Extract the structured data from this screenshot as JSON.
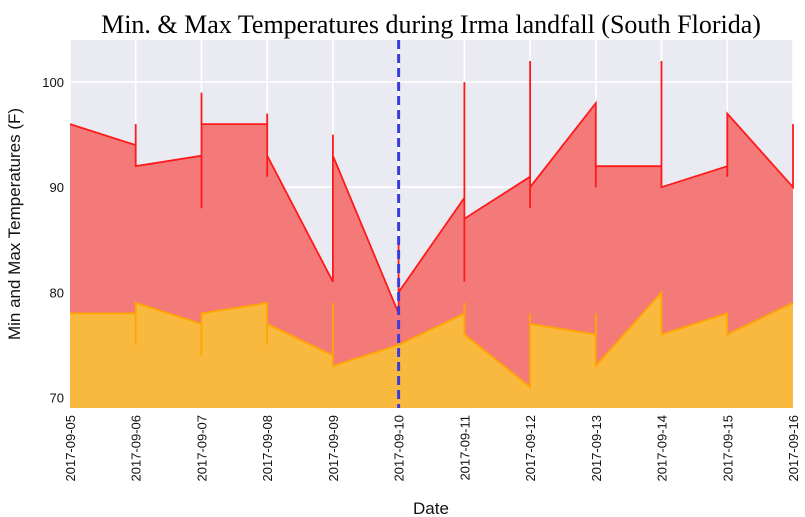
{
  "chart_data": {
    "type": "area",
    "title": "Min. & Max Temperatures during Irma landfall (South Florida)",
    "xlabel": "Date",
    "ylabel": "Min and Max Temperatures (F)",
    "ylim": [
      69,
      104
    ],
    "yticks": [
      "70",
      "80",
      "90",
      "100"
    ],
    "xticks": [
      "2017-09-05",
      "2017-09-06",
      "2017-09-07",
      "2017-09-08",
      "2017-09-09",
      "2017-09-10",
      "2017-09-11",
      "2017-09-12",
      "2017-09-13",
      "2017-09-14",
      "2017-09-15",
      "2017-09-16"
    ],
    "grid": true,
    "landfall_marker": {
      "x": "2017-09-10",
      "color": "#3b3bdc",
      "style": "dashed"
    },
    "series": [
      {
        "color": "#ff1a1a",
        "fill": "#f47a7a",
        "points": [
          [
            "2017-09-05",
            96
          ],
          [
            "2017-09-06",
            94
          ],
          [
            "2017-09-06",
            96
          ],
          [
            "2017-09-06",
            92
          ],
          [
            "2017-09-07",
            93
          ],
          [
            "2017-09-07",
            88
          ],
          [
            "2017-09-07",
            99
          ],
          [
            "2017-09-07",
            96
          ],
          [
            "2017-09-08",
            96
          ],
          [
            "2017-09-08",
            91
          ],
          [
            "2017-09-08",
            97
          ],
          [
            "2017-09-08",
            93
          ],
          [
            "2017-09-09",
            81
          ],
          [
            "2017-09-09",
            95
          ],
          [
            "2017-09-09",
            93
          ],
          [
            "2017-09-10",
            78
          ],
          [
            "2017-09-10",
            85
          ],
          [
            "2017-09-10",
            80
          ],
          [
            "2017-09-11",
            89
          ],
          [
            "2017-09-11",
            81
          ],
          [
            "2017-09-11",
            100
          ],
          [
            "2017-09-11",
            87
          ],
          [
            "2017-09-12",
            91
          ],
          [
            "2017-09-12",
            88
          ],
          [
            "2017-09-12",
            102
          ],
          [
            "2017-09-12",
            90
          ],
          [
            "2017-09-13",
            98
          ],
          [
            "2017-09-13",
            90
          ],
          [
            "2017-09-13",
            92
          ],
          [
            "2017-09-14",
            92
          ],
          [
            "2017-09-14",
            102
          ],
          [
            "2017-09-14",
            90
          ],
          [
            "2017-09-15",
            92
          ],
          [
            "2017-09-15",
            91
          ],
          [
            "2017-09-15",
            97
          ],
          [
            "2017-09-16",
            90
          ],
          [
            "2017-09-16",
            96
          ]
        ]
      },
      {
        "color": "#ffa500",
        "fill": "#f9b93e",
        "points": [
          [
            "2017-09-05",
            78
          ],
          [
            "2017-09-06",
            78
          ],
          [
            "2017-09-06",
            75
          ],
          [
            "2017-09-06",
            79
          ],
          [
            "2017-09-07",
            77
          ],
          [
            "2017-09-07",
            74
          ],
          [
            "2017-09-07",
            78
          ],
          [
            "2017-09-08",
            79
          ],
          [
            "2017-09-08",
            75
          ],
          [
            "2017-09-08",
            77
          ],
          [
            "2017-09-09",
            74
          ],
          [
            "2017-09-09",
            79
          ],
          [
            "2017-09-09",
            73
          ],
          [
            "2017-09-10",
            75
          ],
          [
            "2017-09-10",
            76
          ],
          [
            "2017-09-10",
            75
          ],
          [
            "2017-09-11",
            78
          ],
          [
            "2017-09-11",
            79
          ],
          [
            "2017-09-11",
            76
          ],
          [
            "2017-09-12",
            71
          ],
          [
            "2017-09-12",
            78
          ],
          [
            "2017-09-12",
            77
          ],
          [
            "2017-09-13",
            76
          ],
          [
            "2017-09-13",
            78
          ],
          [
            "2017-09-13",
            73
          ],
          [
            "2017-09-14",
            80
          ],
          [
            "2017-09-14",
            76
          ],
          [
            "2017-09-15",
            78
          ],
          [
            "2017-09-15",
            76
          ],
          [
            "2017-09-16",
            79
          ]
        ]
      }
    ],
    "style": {
      "background": "#eaeaf2",
      "grid_color": "#ffffff"
    }
  }
}
